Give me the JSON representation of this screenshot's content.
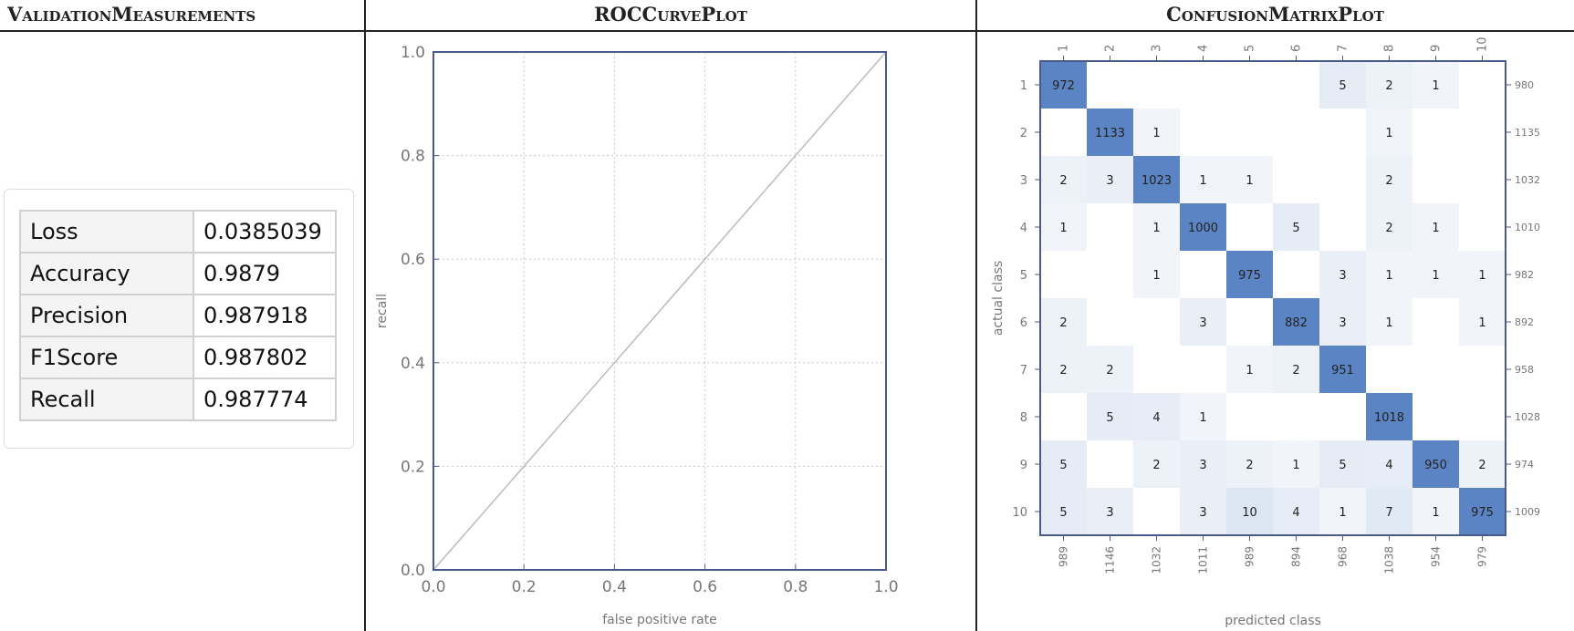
{
  "headers": {
    "left": "ValidationMeasurements",
    "middle": "ROCCurvePlot",
    "right": "ConfusionMatrixPlot"
  },
  "metrics": [
    {
      "name": "Loss",
      "value": "0.0385039"
    },
    {
      "name": "Accuracy",
      "value": "0.9879"
    },
    {
      "name": "Precision",
      "value": "0.987918"
    },
    {
      "name": "F1Score",
      "value": "0.987802"
    },
    {
      "name": "Recall",
      "value": "0.987774"
    }
  ],
  "colors": {
    "frame": "#4a5a8a",
    "diagonal_cell": "#5b84c4",
    "grid": "#c8c8c8",
    "roc_line": "#bbbbbb",
    "axis_text": "#777777"
  },
  "chart_data": [
    {
      "type": "line",
      "xlabel": "false positive rate",
      "ylabel": "recall",
      "xlim": [
        0,
        1
      ],
      "ylim": [
        0,
        1
      ],
      "xticks": [
        "0.0",
        "0.2",
        "0.4",
        "0.6",
        "0.8",
        "1.0"
      ],
      "yticks": [
        "0.0",
        "0.2",
        "0.4",
        "0.6",
        "0.8",
        "1.0"
      ],
      "grid": true,
      "series": [
        {
          "x": [
            0,
            1
          ],
          "y": [
            0,
            1
          ]
        }
      ]
    },
    {
      "type": "heatmap",
      "xlabel": "predicted class",
      "ylabel": "actual class",
      "classes": [
        "1",
        "2",
        "3",
        "4",
        "5",
        "6",
        "7",
        "8",
        "9",
        "10"
      ],
      "matrix": [
        [
          972,
          0,
          0,
          0,
          0,
          0,
          5,
          2,
          1,
          0
        ],
        [
          0,
          1133,
          1,
          0,
          0,
          0,
          0,
          1,
          0,
          0
        ],
        [
          2,
          3,
          1023,
          1,
          1,
          0,
          0,
          2,
          0,
          0
        ],
        [
          1,
          0,
          1,
          1000,
          0,
          5,
          0,
          2,
          1,
          0
        ],
        [
          0,
          0,
          1,
          0,
          975,
          0,
          3,
          1,
          1,
          1
        ],
        [
          2,
          0,
          0,
          3,
          0,
          882,
          3,
          1,
          0,
          1
        ],
        [
          2,
          2,
          0,
          0,
          1,
          2,
          951,
          0,
          0,
          0
        ],
        [
          0,
          5,
          4,
          1,
          0,
          0,
          0,
          1018,
          0,
          0
        ],
        [
          5,
          0,
          2,
          3,
          2,
          1,
          5,
          4,
          950,
          2
        ],
        [
          5,
          3,
          0,
          3,
          10,
          4,
          1,
          7,
          1,
          975
        ]
      ],
      "row_totals": [
        "980",
        "1135",
        "1032",
        "1010",
        "982",
        "892",
        "958",
        "1028",
        "974",
        "1009"
      ],
      "col_totals": [
        "989",
        "1146",
        "1032",
        "1011",
        "989",
        "894",
        "968",
        "1038",
        "954",
        "979"
      ]
    }
  ]
}
